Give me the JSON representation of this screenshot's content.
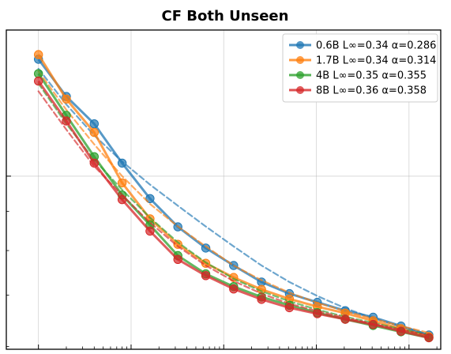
{
  "chart_data": {
    "type": "line",
    "title": "CF Both Unseen",
    "xlabel": "",
    "ylabel": "",
    "x_scale": "log",
    "y_scale": "log",
    "grid": true,
    "legend_position": "top-right",
    "x": [
      1,
      2,
      4,
      8,
      16,
      32,
      64,
      128,
      256,
      512,
      1024,
      2048,
      4096,
      8192,
      16384
    ],
    "series": [
      {
        "name": "0.6B L∞=0.34 α=0.286",
        "color": "#1f77b4",
        "values": [
          1.42,
          1.27,
          1.17,
          1.04,
          0.935,
          0.859,
          0.806,
          0.765,
          0.728,
          0.703,
          0.685,
          0.668,
          0.655,
          0.638,
          0.621
        ],
        "fit": [
          1.38,
          1.24,
          1.13,
          1.045,
          0.975,
          0.915,
          0.86,
          0.81,
          0.765,
          0.728,
          0.698,
          0.673,
          0.653,
          0.637,
          0.622
        ]
      },
      {
        "name": "1.7B L∞=0.34 α=0.314",
        "color": "#ff7f0e",
        "values": [
          1.44,
          1.26,
          1.14,
          0.98,
          0.88,
          0.815,
          0.77,
          0.738,
          0.712,
          0.692,
          0.676,
          0.663,
          0.648,
          0.633,
          0.618
        ],
        "fit": [
          1.37,
          1.22,
          1.1,
          1.0,
          0.92,
          0.86,
          0.81,
          0.765,
          0.732,
          0.705,
          0.684,
          0.667,
          0.652,
          0.638,
          0.625
        ]
      },
      {
        "name": "4B L∞=0.35 α=0.355",
        "color": "#2ca02c",
        "values": [
          1.36,
          1.2,
          1.06,
          0.945,
          0.864,
          0.788,
          0.746,
          0.718,
          0.696,
          0.679,
          0.664,
          0.651,
          0.639,
          0.627,
          0.616
        ],
        "fit": [
          1.32,
          1.17,
          1.05,
          0.96,
          0.883,
          0.82,
          0.772,
          0.735,
          0.708,
          0.687,
          0.67,
          0.656,
          0.644,
          0.632,
          0.621
        ]
      },
      {
        "name": "8B L∞=0.36 α=0.358",
        "color": "#d62728",
        "values": [
          1.33,
          1.18,
          1.04,
          0.932,
          0.848,
          0.779,
          0.742,
          0.713,
          0.691,
          0.674,
          0.662,
          0.651,
          0.641,
          0.628,
          0.616
        ],
        "fit": [
          1.29,
          1.15,
          1.03,
          0.945,
          0.87,
          0.81,
          0.765,
          0.73,
          0.703,
          0.682,
          0.667,
          0.654,
          0.642,
          0.631,
          0.62
        ]
      }
    ]
  }
}
